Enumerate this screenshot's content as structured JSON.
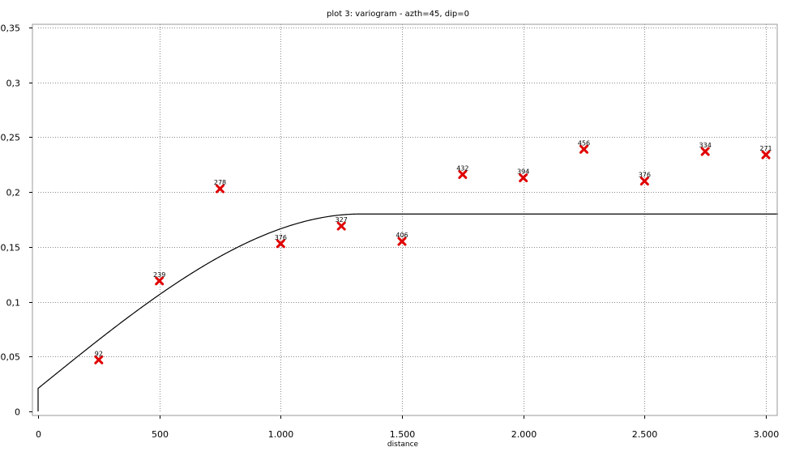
{
  "chart_data": {
    "type": "scatter",
    "title": "plot 3:  variogram - azth=45, dip=0",
    "xlabel": "distance",
    "ylabel": "",
    "xlim": [
      0,
      3050
    ],
    "ylim": [
      0,
      0.35
    ],
    "x_ticks": [
      {
        "value": 0,
        "label": "0"
      },
      {
        "value": 500,
        "label": "500"
      },
      {
        "value": 1000,
        "label": "1.000"
      },
      {
        "value": 1500,
        "label": "1.500"
      },
      {
        "value": 2000,
        "label": "2.000"
      },
      {
        "value": 2500,
        "label": "2.500"
      },
      {
        "value": 3000,
        "label": "3.000"
      }
    ],
    "y_ticks": [
      {
        "value": 0,
        "label": "0"
      },
      {
        "value": 0.05,
        "label": "0,05"
      },
      {
        "value": 0.1,
        "label": "0,1"
      },
      {
        "value": 0.15,
        "label": "0,15"
      },
      {
        "value": 0.2,
        "label": "0,2"
      },
      {
        "value": 0.25,
        "label": "0,25"
      },
      {
        "value": 0.3,
        "label": "0,3"
      },
      {
        "value": 0.35,
        "label": "0,35"
      }
    ],
    "grid": true,
    "series": [
      {
        "kind": "experimental",
        "marker": "x",
        "color": "#e00000",
        "points": [
          {
            "x": 250,
            "y": 0.047,
            "label": "92"
          },
          {
            "x": 500,
            "y": 0.119,
            "label": "239"
          },
          {
            "x": 750,
            "y": 0.203,
            "label": "278"
          },
          {
            "x": 1000,
            "y": 0.153,
            "label": "376"
          },
          {
            "x": 1250,
            "y": 0.169,
            "label": "327"
          },
          {
            "x": 1500,
            "y": 0.155,
            "label": "406"
          },
          {
            "x": 1750,
            "y": 0.216,
            "label": "432"
          },
          {
            "x": 2000,
            "y": 0.213,
            "label": "394"
          },
          {
            "x": 2250,
            "y": 0.239,
            "label": "456"
          },
          {
            "x": 2500,
            "y": 0.21,
            "label": "376"
          },
          {
            "x": 2750,
            "y": 0.237,
            "label": "334"
          },
          {
            "x": 3000,
            "y": 0.234,
            "label": "271"
          }
        ]
      },
      {
        "kind": "model",
        "type": "spherical",
        "color": "#000000",
        "nugget": 0.021,
        "sill": 0.18,
        "range": 1330,
        "xmax": 3050
      }
    ]
  }
}
